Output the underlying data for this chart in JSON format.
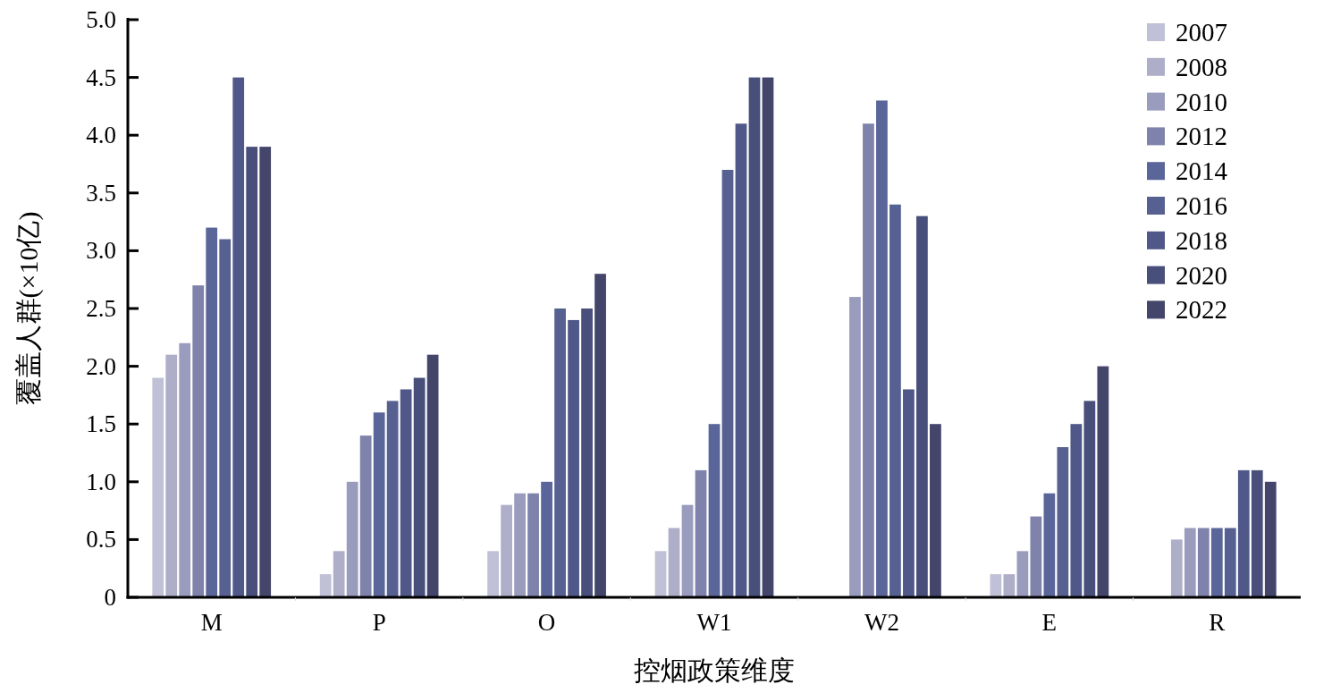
{
  "chart_data": {
    "type": "bar",
    "xlabel": "控烟政策维度",
    "ylabel": "覆盖人群(×10亿)",
    "categories": [
      "M",
      "P",
      "O",
      "W1",
      "W2",
      "E",
      "R"
    ],
    "series": [
      {
        "name": "2007",
        "color": "#c0c0d6",
        "values": [
          1.9,
          0.2,
          0.4,
          0.4,
          null,
          0.2,
          null
        ]
      },
      {
        "name": "2008",
        "color": "#aeaec8",
        "values": [
          2.1,
          0.4,
          0.8,
          0.6,
          null,
          0.2,
          0.5
        ]
      },
      {
        "name": "2010",
        "color": "#9a9cbe",
        "values": [
          2.2,
          1.0,
          0.9,
          0.8,
          2.6,
          0.4,
          0.6
        ]
      },
      {
        "name": "2012",
        "color": "#7f82ab",
        "values": [
          2.7,
          1.4,
          0.9,
          1.1,
          4.1,
          0.7,
          0.6
        ]
      },
      {
        "name": "2014",
        "color": "#5a6699",
        "values": [
          3.2,
          1.6,
          1.0,
          1.5,
          4.3,
          0.9,
          0.6
        ]
      },
      {
        "name": "2016",
        "color": "#566192",
        "values": [
          3.1,
          1.7,
          2.5,
          3.7,
          3.4,
          1.3,
          0.6
        ]
      },
      {
        "name": "2018",
        "color": "#4f5888",
        "values": [
          4.5,
          1.8,
          2.4,
          4.1,
          1.8,
          1.5,
          1.1
        ]
      },
      {
        "name": "2020",
        "color": "#484f7a",
        "values": [
          3.9,
          1.9,
          2.5,
          4.5,
          3.3,
          1.7,
          1.1
        ]
      },
      {
        "name": "2022",
        "color": "#43456a",
        "values": [
          3.9,
          2.1,
          2.8,
          4.5,
          1.5,
          2.0,
          1.0
        ]
      }
    ],
    "ylim": [
      0,
      5
    ],
    "yticks": [
      0,
      0.5,
      {
        "value": 1,
        "label": "1.0"
      },
      1.5,
      {
        "value": 2,
        "label": "2.0"
      },
      2.5,
      {
        "value": 3,
        "label": "3.0"
      },
      3.5,
      {
        "value": 4,
        "label": "4.0"
      },
      4.5,
      {
        "value": 5,
        "label": "5.0"
      }
    ],
    "grid": false,
    "legend": "top right"
  }
}
